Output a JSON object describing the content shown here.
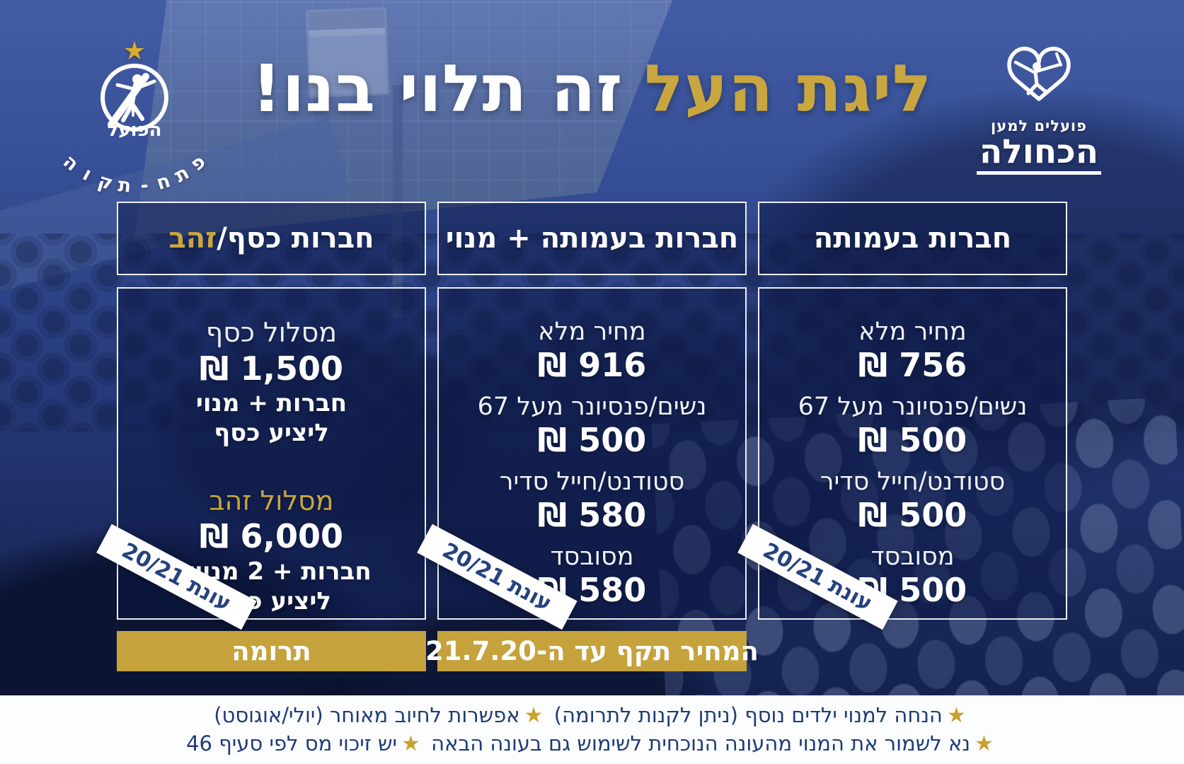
{
  "page": {
    "title_gold": "ליגת העל",
    "title_white": "זה תלוי בנו!"
  },
  "logo_petah_tikva": {
    "star": "★",
    "name_top": "הפועל",
    "name_bottom": "פתח-תקוה"
  },
  "logo_hakchula": {
    "tagline": "פועלים למען",
    "name": "הכחולה"
  },
  "columns": [
    {
      "header": "חברות בעמותה",
      "rows": [
        {
          "label": "מחיר מלא",
          "price": "756 ₪"
        },
        {
          "label": "נשים/פנסיונר מעל 67",
          "price": "500 ₪"
        },
        {
          "label": "סטודנט/חייל סדיר",
          "price": "500 ₪"
        },
        {
          "label": "מסובסד",
          "price": "500 ₪"
        }
      ],
      "ribbon": "עונת 20/21",
      "bar": ""
    },
    {
      "header": "חברות בעמותה + מנוי",
      "rows": [
        {
          "label": "מחיר מלא",
          "price": "916 ₪"
        },
        {
          "label": "נשים/פנסיונר מעל 67",
          "price": "500 ₪"
        },
        {
          "label": "סטודנט/חייל סדיר",
          "price": "580 ₪"
        },
        {
          "label": "מסובסד",
          "price": "580 ₪"
        }
      ],
      "ribbon": "עונת 20/21",
      "bar": "המחיר תקף עד ה-21.7.20"
    },
    {
      "header_white": "חברות כסף/",
      "header_gold": "זהב",
      "tracks": [
        {
          "title": "מסלול כסף",
          "price": "1,500 ₪",
          "line1": "חברות + מנוי",
          "line2": "ליציע כסף"
        },
        {
          "title": "מסלול זהב",
          "price": "6,000 ₪",
          "line1": "חברות + 2 מנויים",
          "line2": "ליציע כבוד"
        }
      ],
      "ribbon": "עונת 20/21",
      "bar": "תרומה"
    }
  ],
  "footer": {
    "star": "★",
    "line1_a": "הנחה למנוי ילדים נוסף (ניתן לקנות לתרומה)",
    "line1_b": "אפשרות לחיוב מאוחר (יולי/אוגוסט)",
    "line2_a": "נא לשמור את המנוי מהעונה הנוכחית לשימוש גם בעונה הבאה",
    "line2_b": "יש זיכוי מס לפי סעיף 46"
  },
  "colors": {
    "gold": "#c5a23c",
    "navy_text": "#1e3a78",
    "white": "#ffffff"
  }
}
